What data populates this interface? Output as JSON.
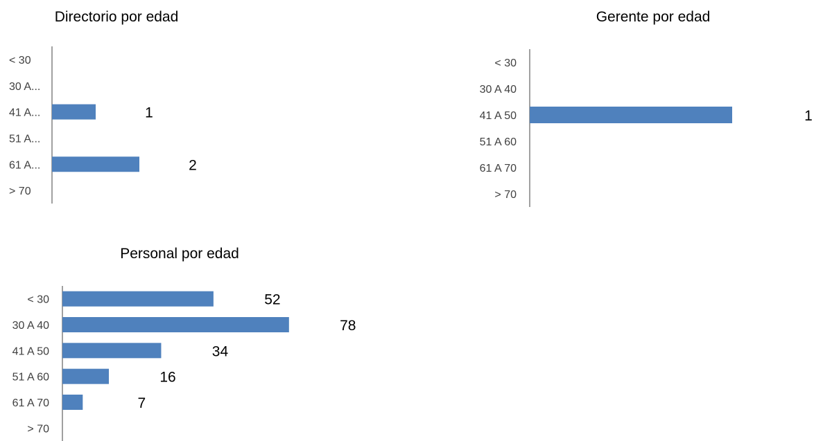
{
  "chart_data": [
    {
      "type": "bar",
      "orientation": "horizontal",
      "title": "Directorio por edad",
      "categories": [
        "< 30",
        "30 A...",
        "41 A...",
        "51 A...",
        "61 A...",
        "> 70"
      ],
      "values": [
        0,
        0,
        1,
        0,
        2,
        0
      ],
      "data_labels": [
        "",
        "",
        "1",
        "",
        "2",
        ""
      ],
      "xlim": [
        0,
        2
      ],
      "color": "#4F81BD",
      "grid": false,
      "legend": "none"
    },
    {
      "type": "bar",
      "orientation": "horizontal",
      "title": "Gerente por edad",
      "categories": [
        "< 30",
        "30 A 40",
        "41 A 50",
        "51 A 60",
        "61 A 70",
        "> 70"
      ],
      "values": [
        0,
        0,
        1,
        0,
        0,
        0
      ],
      "data_labels": [
        "",
        "",
        "1",
        "",
        "",
        ""
      ],
      "xlim": [
        0,
        1
      ],
      "color": "#4F81BD",
      "grid": false,
      "legend": "none"
    },
    {
      "type": "bar",
      "orientation": "horizontal",
      "title": "Personal por edad",
      "categories": [
        "< 30",
        "30 A 40",
        "41 A 50",
        "51 A 60",
        "61 A 70",
        "> 70"
      ],
      "values": [
        52,
        78,
        34,
        16,
        7,
        0
      ],
      "data_labels": [
        "52",
        "78",
        "34",
        "16",
        "7",
        ""
      ],
      "xlim": [
        0,
        78
      ],
      "color": "#4F81BD",
      "grid": false,
      "legend": "none"
    }
  ]
}
